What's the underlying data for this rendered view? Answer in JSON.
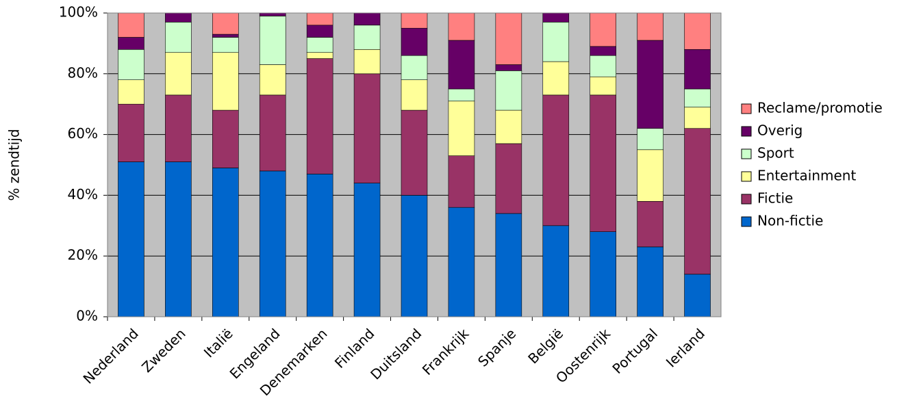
{
  "chart_data": {
    "type": "stacked-bar",
    "y_label": "% zendtijd",
    "categories": [
      "Nederland",
      "Zweden",
      "Italië",
      "Engeland",
      "Denemarken",
      "Finland",
      "Duitsland",
      "Frankrijk",
      "Spanje",
      "België",
      "Oostenrijk",
      "Portugal",
      "Ierland"
    ],
    "series": [
      {
        "name": "Non-fictie",
        "color": "#0066cc",
        "values": [
          51,
          51,
          49,
          48,
          47,
          44,
          40,
          36,
          34,
          30,
          28,
          23,
          14
        ]
      },
      {
        "name": "Fictie",
        "color": "#993366",
        "values": [
          19,
          22,
          19,
          25,
          38,
          36,
          28,
          17,
          23,
          43,
          45,
          15,
          48
        ]
      },
      {
        "name": "Entertainment",
        "color": "#ffff99",
        "values": [
          8,
          14,
          19,
          10,
          2,
          8,
          10,
          18,
          11,
          11,
          6,
          17,
          7
        ]
      },
      {
        "name": "Sport",
        "color": "#ccffcc",
        "values": [
          10,
          10,
          5,
          16,
          5,
          8,
          8,
          4,
          13,
          13,
          7,
          7,
          6
        ]
      },
      {
        "name": "Overig",
        "color": "#660066",
        "values": [
          4,
          3,
          1,
          1,
          4,
          4,
          9,
          16,
          2,
          3,
          3,
          29,
          13
        ]
      },
      {
        "name": "Reclame/promotie",
        "color": "#ff8080",
        "values": [
          8,
          0,
          7,
          0,
          4,
          0,
          5,
          9,
          17,
          0,
          11,
          9,
          12
        ]
      }
    ],
    "ylim": [
      0,
      100
    ],
    "yticks": [
      {
        "value": 0,
        "label": "0%"
      },
      {
        "value": 20,
        "label": "20%"
      },
      {
        "value": 40,
        "label": "40%"
      },
      {
        "value": 60,
        "label": "60%"
      },
      {
        "value": 80,
        "label": "80%"
      },
      {
        "value": 100,
        "label": "100%"
      }
    ],
    "grid": true,
    "plot_background": "#c0c0c0",
    "legend": "right"
  }
}
